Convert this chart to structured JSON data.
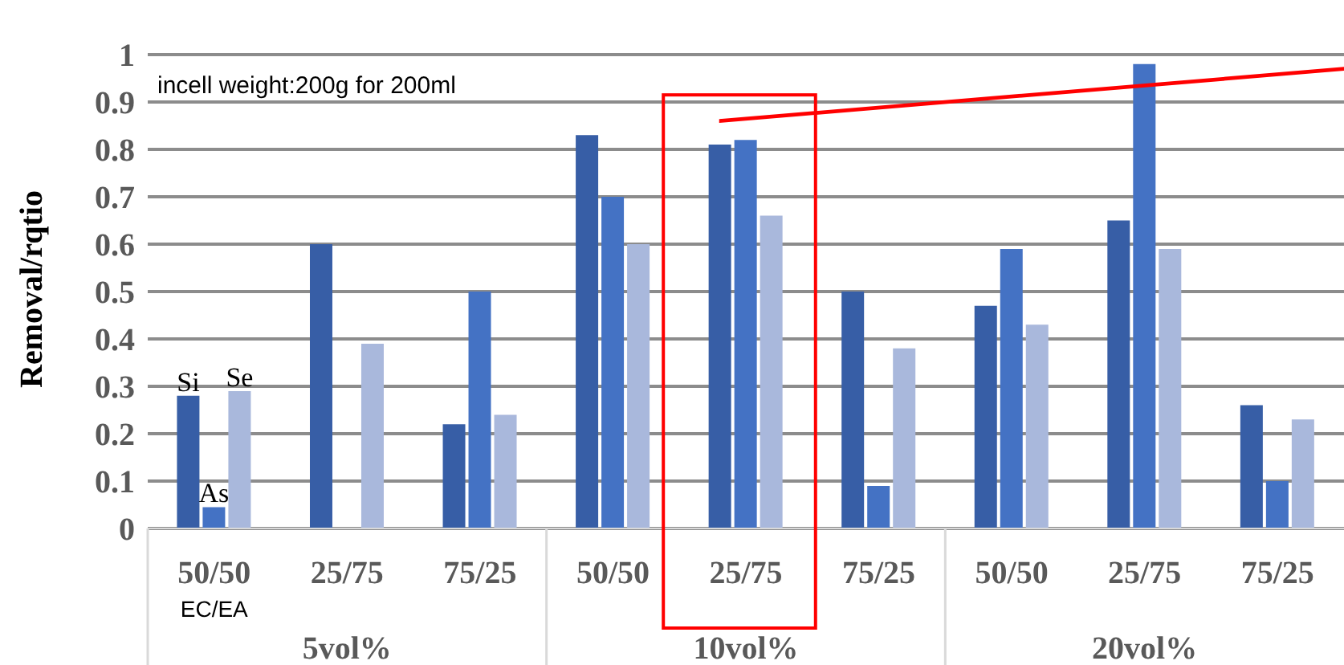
{
  "chart_data": {
    "type": "bar",
    "ylabel": "Removal/rqtio",
    "categories": [
      "50/50",
      "25/75",
      "75/25",
      "50/50",
      "25/75",
      "75/25",
      "50/50",
      "25/75",
      "75/25"
    ],
    "series": [
      {
        "name": "Si",
        "color": "#375ea6",
        "values": [
          0.28,
          0.6,
          0.22,
          0.83,
          0.81,
          0.5,
          0.47,
          0.65,
          0.26
        ]
      },
      {
        "name": "As",
        "color": "#4472c4",
        "values": [
          0.045,
          0,
          0.5,
          0.7,
          0.82,
          0.09,
          0.59,
          0.98,
          0.1
        ]
      },
      {
        "name": "Se",
        "color": "#a9b8dc",
        "values": [
          0.29,
          0.39,
          0.24,
          0.6,
          0.66,
          0.38,
          0.43,
          0.59,
          0.23
        ]
      }
    ],
    "ylim": [
      0,
      1
    ],
    "yticks": [
      0,
      0.1,
      0.2,
      0.3,
      0.4,
      0.5,
      0.6,
      0.7,
      0.8,
      0.9,
      1
    ],
    "grid": "y",
    "annotations": [
      "incell weight:200g for 200ml",
      "EC/EA",
      "5vol%",
      "10vol%",
      "20vol%"
    ]
  }
}
